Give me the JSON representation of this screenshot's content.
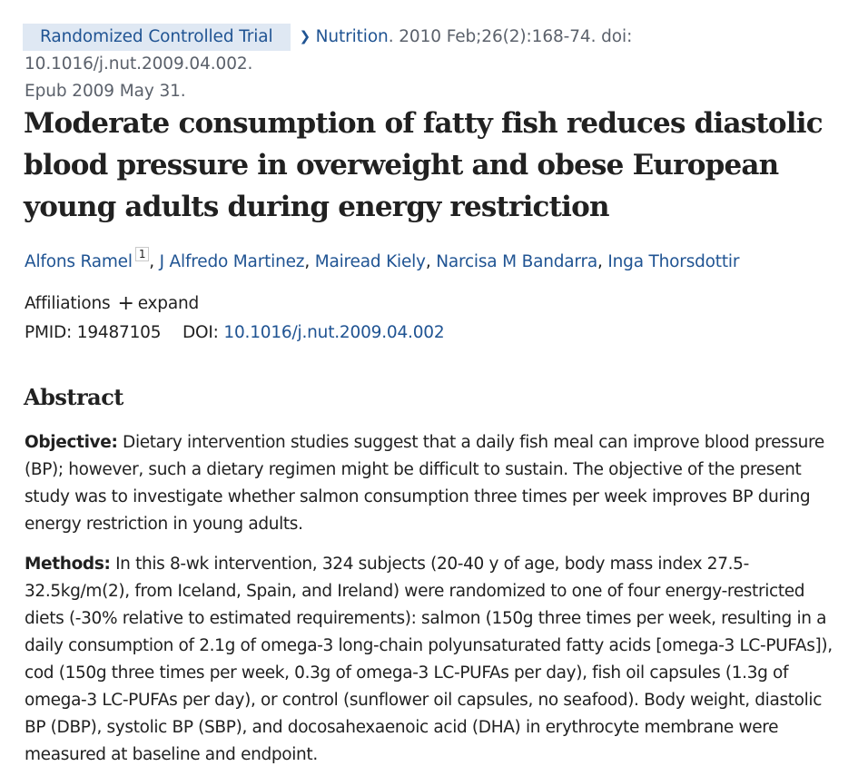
{
  "citation": {
    "publication_type": "Randomized Controlled Trial",
    "journal": "Nutrition",
    "details": ". 2010 Feb;26(2):168-74. doi: 10.1016/j.nut.2009.04.002.",
    "epub": "Epub 2009 May 31."
  },
  "article": {
    "title": "Moderate consumption of fatty fish reduces diastolic blood pressure in overweight and obese European young adults during energy restriction"
  },
  "authors": [
    {
      "name": "Alfons Ramel",
      "affiliation": "1"
    },
    {
      "name": "J Alfredo Martinez"
    },
    {
      "name": "Mairead Kiely"
    },
    {
      "name": "Narcisa M Bandarra"
    },
    {
      "name": "Inga Thorsdottir"
    }
  ],
  "affiliations": {
    "label": "Affiliations",
    "plus_icon": "+",
    "expand_label": "expand"
  },
  "identifiers": {
    "pmid_label": "PMID:",
    "pmid": "19487105",
    "doi_label": "DOI:",
    "doi": "10.1016/j.nut.2009.04.002"
  },
  "abstract": {
    "heading": "Abstract",
    "objective_label": "Objective:",
    "objective_text": " Dietary intervention studies suggest that a daily fish meal can improve blood pressure (BP); however, such a dietary regimen might be difficult to sustain. The objective of the present study was to investigate whether salmon consumption three times per week improves BP during energy restriction in young adults.",
    "methods_label": "Methods:",
    "methods_text": " In this 8-wk intervention, 324 subjects (20-40 y of age, body mass index 27.5-32.5kg/m(2), from Iceland, Spain, and Ireland) were randomized to one of four energy-restricted diets (-30% relative to estimated requirements): salmon (150g three times per week, resulting in a daily consumption of 2.1g of omega-3 long-chain polyunsaturated fatty acids [omega-3 LC-PUFAs]), cod (150g three times per week, 0.3g of omega-3 LC-PUFAs per day), fish oil capsules (1.3g of omega-3 LC-PUFAs per day), or control (sunflower oil capsules, no seafood). Body weight, diastolic BP (DBP), systolic BP (SBP), and docosahexaenoic acid (DHA) in erythrocyte membrane were measured at baseline and endpoint."
  },
  "colors": {
    "link": "#205493",
    "badge_bg": "#dfe8f3",
    "text": "#212121",
    "muted": "#5b616b"
  }
}
